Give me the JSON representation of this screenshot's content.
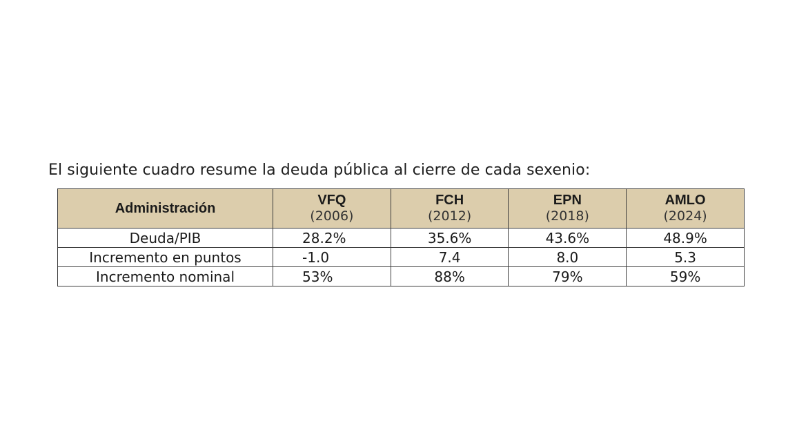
{
  "intro_text": "El siguiente cuadro resume la deuda pública al cierre de cada sexenio:",
  "table": {
    "header_label": "Administración",
    "administrations": [
      {
        "name": "VFQ",
        "year": "(2006)"
      },
      {
        "name": "FCH",
        "year": "(2012)"
      },
      {
        "name": "EPN",
        "year": "(2018)"
      },
      {
        "name": "AMLO",
        "year": "(2024)"
      }
    ],
    "rows": [
      {
        "label": "Deuda/PIB",
        "values": [
          "28.2%",
          "35.6%",
          "43.6%",
          "48.9%"
        ]
      },
      {
        "label": "Incremento en puntos",
        "values": [
          "-1.0",
          "7.4",
          "8.0",
          "5.3"
        ]
      },
      {
        "label": "Incremento nominal",
        "values": [
          "53%",
          "88%",
          "79%",
          "59%"
        ]
      }
    ]
  },
  "colors": {
    "header_background": "#dccdac",
    "border": "#3a3a3a"
  }
}
